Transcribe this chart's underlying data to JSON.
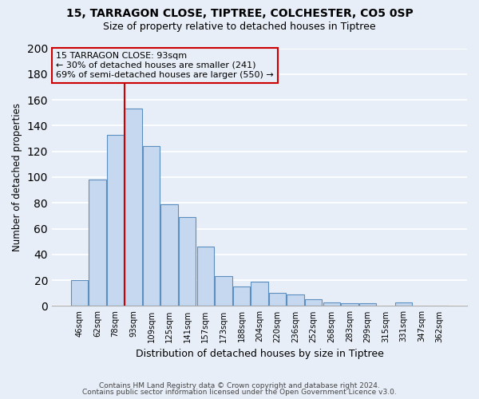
{
  "title1": "15, TARRAGON CLOSE, TIPTREE, COLCHESTER, CO5 0SP",
  "title2": "Size of property relative to detached houses in Tiptree",
  "xlabel": "Distribution of detached houses by size in Tiptree",
  "ylabel": "Number of detached properties",
  "bar_labels": [
    "46sqm",
    "62sqm",
    "78sqm",
    "93sqm",
    "109sqm",
    "125sqm",
    "141sqm",
    "157sqm",
    "173sqm",
    "188sqm",
    "204sqm",
    "220sqm",
    "236sqm",
    "252sqm",
    "268sqm",
    "283sqm",
    "299sqm",
    "315sqm",
    "331sqm",
    "347sqm",
    "362sqm"
  ],
  "bar_heights": [
    20,
    98,
    133,
    153,
    124,
    79,
    69,
    46,
    23,
    15,
    19,
    10,
    9,
    5,
    3,
    2,
    2,
    0,
    3,
    0,
    0
  ],
  "bar_color": "#c5d8f0",
  "bar_edge_color": "#5a8fc0",
  "ylim": [
    0,
    200
  ],
  "yticks": [
    0,
    20,
    40,
    60,
    80,
    100,
    120,
    140,
    160,
    180,
    200
  ],
  "property_line_index": 3,
  "property_line_color": "#cc0000",
  "annotation_title": "15 TARRAGON CLOSE: 93sqm",
  "annotation_line1": "← 30% of detached houses are smaller (241)",
  "annotation_line2": "69% of semi-detached houses are larger (550) →",
  "annotation_box_color": "#cc0000",
  "footer1": "Contains HM Land Registry data © Crown copyright and database right 2024.",
  "footer2": "Contains public sector information licensed under the Open Government Licence v3.0.",
  "background_color": "#e8eef8",
  "grid_color": "#ffffff"
}
